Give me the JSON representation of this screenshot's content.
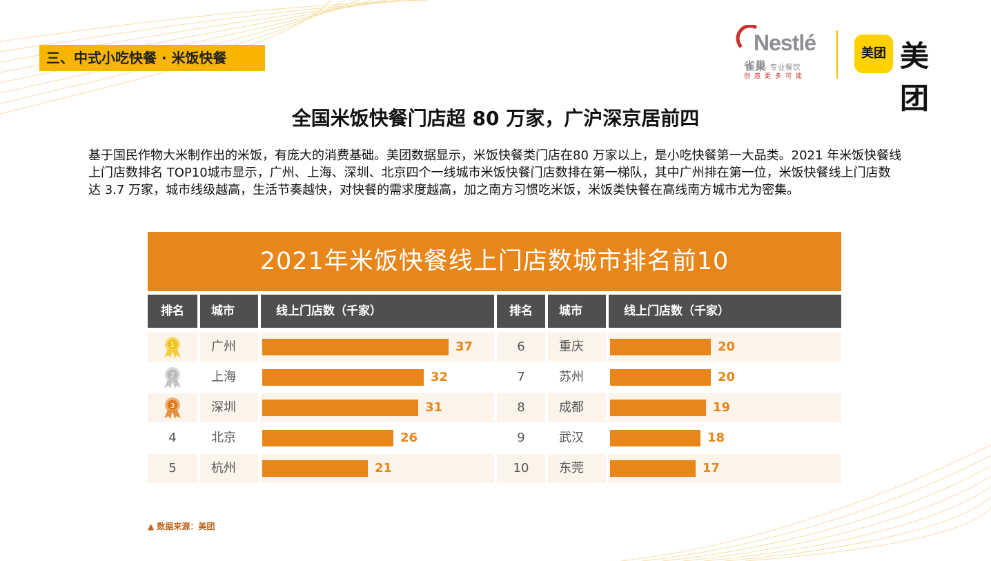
{
  "section": {
    "tag": "三、中式小吃快餐 · 米饭快餐"
  },
  "logos": {
    "nestle_brand": "Nestlé",
    "nestle_cn": "雀巢",
    "nestle_cn_small": "专业餐饮",
    "nestle_slogan": "创造更多可能",
    "meituan_box": "美团",
    "meituan_word": "美团"
  },
  "page_title": "全国米饭快餐门店超 80 万家，广沪深京居前四",
  "intro": "基于国民作物大米制作出的米饭，有庞大的消费基础。美团数据显示，米饭快餐类门店在80 万家以上，是小吃快餐第一大品类。2021 年米饭快餐线上门店数排名 TOP10城市显示，广州、上海、深圳、北京四个一线城市米饭快餐门店数排在第一梯队，其中广州排在第一位，米饭快餐线上门店数达 3.7 万家，城市线级越高，生活节奏越快，对快餐的需求度越高，加之南方习惯吃米饭，米饭类快餐在高线南方城市尤为密集。",
  "source": "▲ 数据来源：美团",
  "colors": {
    "accent": "#e8861a",
    "header": "#4f4f4f",
    "tag": "#f7b500"
  },
  "chart_data": {
    "type": "bar",
    "title": "2021年米饭快餐线上门店数城市排名前10",
    "headers": {
      "rank": "排名",
      "city": "城市",
      "value": "线上门店数（千家）"
    },
    "categories": [
      "广州",
      "上海",
      "深圳",
      "北京",
      "杭州",
      "重庆",
      "苏州",
      "成都",
      "武汉",
      "东莞"
    ],
    "ranks": [
      "1",
      "2",
      "3",
      "4",
      "5",
      "6",
      "7",
      "8",
      "9",
      "10"
    ],
    "values": [
      37,
      32,
      31,
      26,
      21,
      20,
      20,
      19,
      18,
      17
    ],
    "medals": [
      "gold-medal-icon",
      "silver-medal-icon",
      "bronze-medal-icon"
    ]
  }
}
